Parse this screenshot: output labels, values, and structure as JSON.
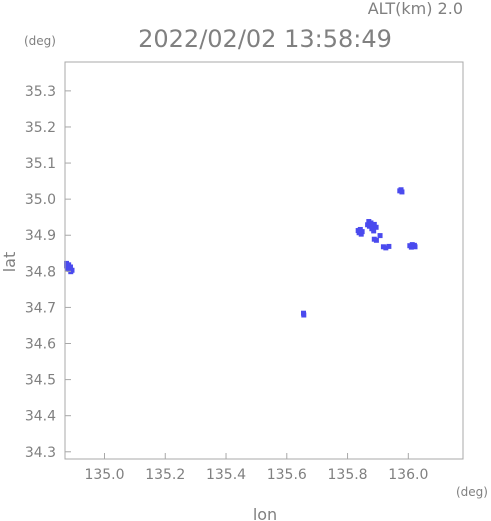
{
  "chart_data": {
    "type": "scatter",
    "title": "2022/02/02 13:58:49",
    "subtitle": "ALT(km) 2.0",
    "xlabel": "lon",
    "ylabel": "lat",
    "x_unit": "(deg)",
    "y_unit": "(deg)",
    "xlim": [
      134.87,
      136.18
    ],
    "ylim": [
      34.28,
      35.38
    ],
    "x_ticks": [
      {
        "value": 135.0,
        "label": "135.0"
      },
      {
        "value": 135.2,
        "label": "135.2"
      },
      {
        "value": 135.4,
        "label": "135.4"
      },
      {
        "value": 135.6,
        "label": "135.6"
      },
      {
        "value": 135.8,
        "label": "135.8"
      },
      {
        "value": 136.0,
        "label": "136.0"
      }
    ],
    "y_ticks": [
      {
        "value": 34.3,
        "label": "34.3"
      },
      {
        "value": 34.4,
        "label": "34.4"
      },
      {
        "value": 34.5,
        "label": "34.5"
      },
      {
        "value": 34.6,
        "label": "34.6"
      },
      {
        "value": 34.7,
        "label": "34.7"
      },
      {
        "value": 34.8,
        "label": "34.8"
      },
      {
        "value": 34.9,
        "label": "34.9"
      },
      {
        "value": 35.0,
        "label": "35.0"
      },
      {
        "value": 35.1,
        "label": "35.1"
      },
      {
        "value": 35.2,
        "label": "35.2"
      },
      {
        "value": 35.3,
        "label": "35.3"
      }
    ],
    "grid": false,
    "point_color": "#4a4aee",
    "points": [
      {
        "x": 134.875,
        "y": 34.815
      },
      {
        "x": 134.882,
        "y": 34.818
      },
      {
        "x": 134.888,
        "y": 34.812
      },
      {
        "x": 134.885,
        "y": 34.805
      },
      {
        "x": 134.878,
        "y": 34.808
      },
      {
        "x": 134.893,
        "y": 34.803
      },
      {
        "x": 134.875,
        "y": 34.822
      },
      {
        "x": 134.889,
        "y": 34.799
      },
      {
        "x": 135.655,
        "y": 34.684
      },
      {
        "x": 135.656,
        "y": 34.679
      },
      {
        "x": 135.835,
        "y": 34.913
      },
      {
        "x": 135.842,
        "y": 34.916
      },
      {
        "x": 135.848,
        "y": 34.91
      },
      {
        "x": 135.838,
        "y": 34.907
      },
      {
        "x": 135.845,
        "y": 34.903
      },
      {
        "x": 135.87,
        "y": 34.938
      },
      {
        "x": 135.877,
        "y": 34.934
      },
      {
        "x": 135.882,
        "y": 34.927
      },
      {
        "x": 135.872,
        "y": 34.925
      },
      {
        "x": 135.888,
        "y": 34.93
      },
      {
        "x": 135.894,
        "y": 34.922
      },
      {
        "x": 135.88,
        "y": 34.918
      },
      {
        "x": 135.866,
        "y": 34.929
      },
      {
        "x": 135.886,
        "y": 34.912
      },
      {
        "x": 135.888,
        "y": 34.889
      },
      {
        "x": 135.895,
        "y": 34.886
      },
      {
        "x": 135.907,
        "y": 34.899
      },
      {
        "x": 135.918,
        "y": 34.868
      },
      {
        "x": 135.926,
        "y": 34.865
      },
      {
        "x": 135.936,
        "y": 34.869
      },
      {
        "x": 135.972,
        "y": 35.023
      },
      {
        "x": 135.979,
        "y": 35.02
      },
      {
        "x": 135.976,
        "y": 35.026
      },
      {
        "x": 136.005,
        "y": 34.871
      },
      {
        "x": 136.013,
        "y": 34.874
      },
      {
        "x": 136.02,
        "y": 34.872
      },
      {
        "x": 136.01,
        "y": 34.867
      },
      {
        "x": 136.022,
        "y": 34.868
      }
    ]
  }
}
